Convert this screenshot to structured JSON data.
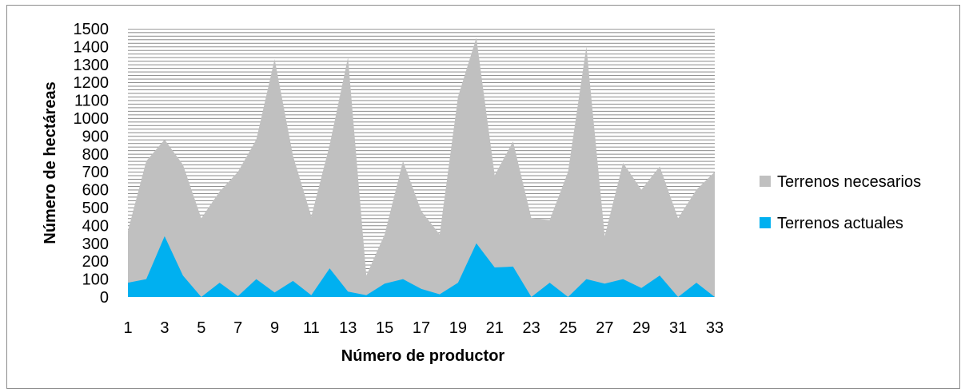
{
  "chart_data": {
    "type": "area",
    "title": "",
    "xlabel": "Número de productor",
    "ylabel": "Número de hectáreas",
    "ylim": [
      0,
      1500
    ],
    "y_ticks": [
      0,
      100,
      200,
      300,
      400,
      500,
      600,
      700,
      800,
      900,
      1000,
      1100,
      1200,
      1300,
      1400,
      1500
    ],
    "x": [
      1,
      2,
      3,
      4,
      5,
      6,
      7,
      8,
      9,
      10,
      11,
      12,
      13,
      14,
      15,
      16,
      17,
      18,
      19,
      20,
      21,
      22,
      23,
      24,
      25,
      26,
      27,
      28,
      29,
      30,
      31,
      32,
      33
    ],
    "x_tick_labels": [
      "1",
      "3",
      "5",
      "7",
      "9",
      "11",
      "13",
      "15",
      "17",
      "19",
      "21",
      "23",
      "25",
      "27",
      "29",
      "31",
      "33"
    ],
    "grid": true,
    "legend_position": "right",
    "series": [
      {
        "name": "Terrenos necesarios",
        "color": "#c0c0c0",
        "values": [
          370,
          760,
          880,
          740,
          440,
          590,
          700,
          880,
          1330,
          790,
          450,
          850,
          1340,
          120,
          350,
          760,
          480,
          350,
          1120,
          1450,
          680,
          870,
          440,
          430,
          700,
          1400,
          340,
          750,
          600,
          730,
          440,
          600,
          700
        ]
      },
      {
        "name": "Terrenos actuales",
        "color": "#00b0f0",
        "values": [
          80,
          100,
          340,
          120,
          0,
          80,
          5,
          100,
          25,
          90,
          10,
          160,
          30,
          10,
          75,
          100,
          45,
          15,
          80,
          300,
          165,
          170,
          0,
          80,
          0,
          100,
          75,
          100,
          50,
          120,
          0,
          80,
          0
        ]
      }
    ]
  }
}
